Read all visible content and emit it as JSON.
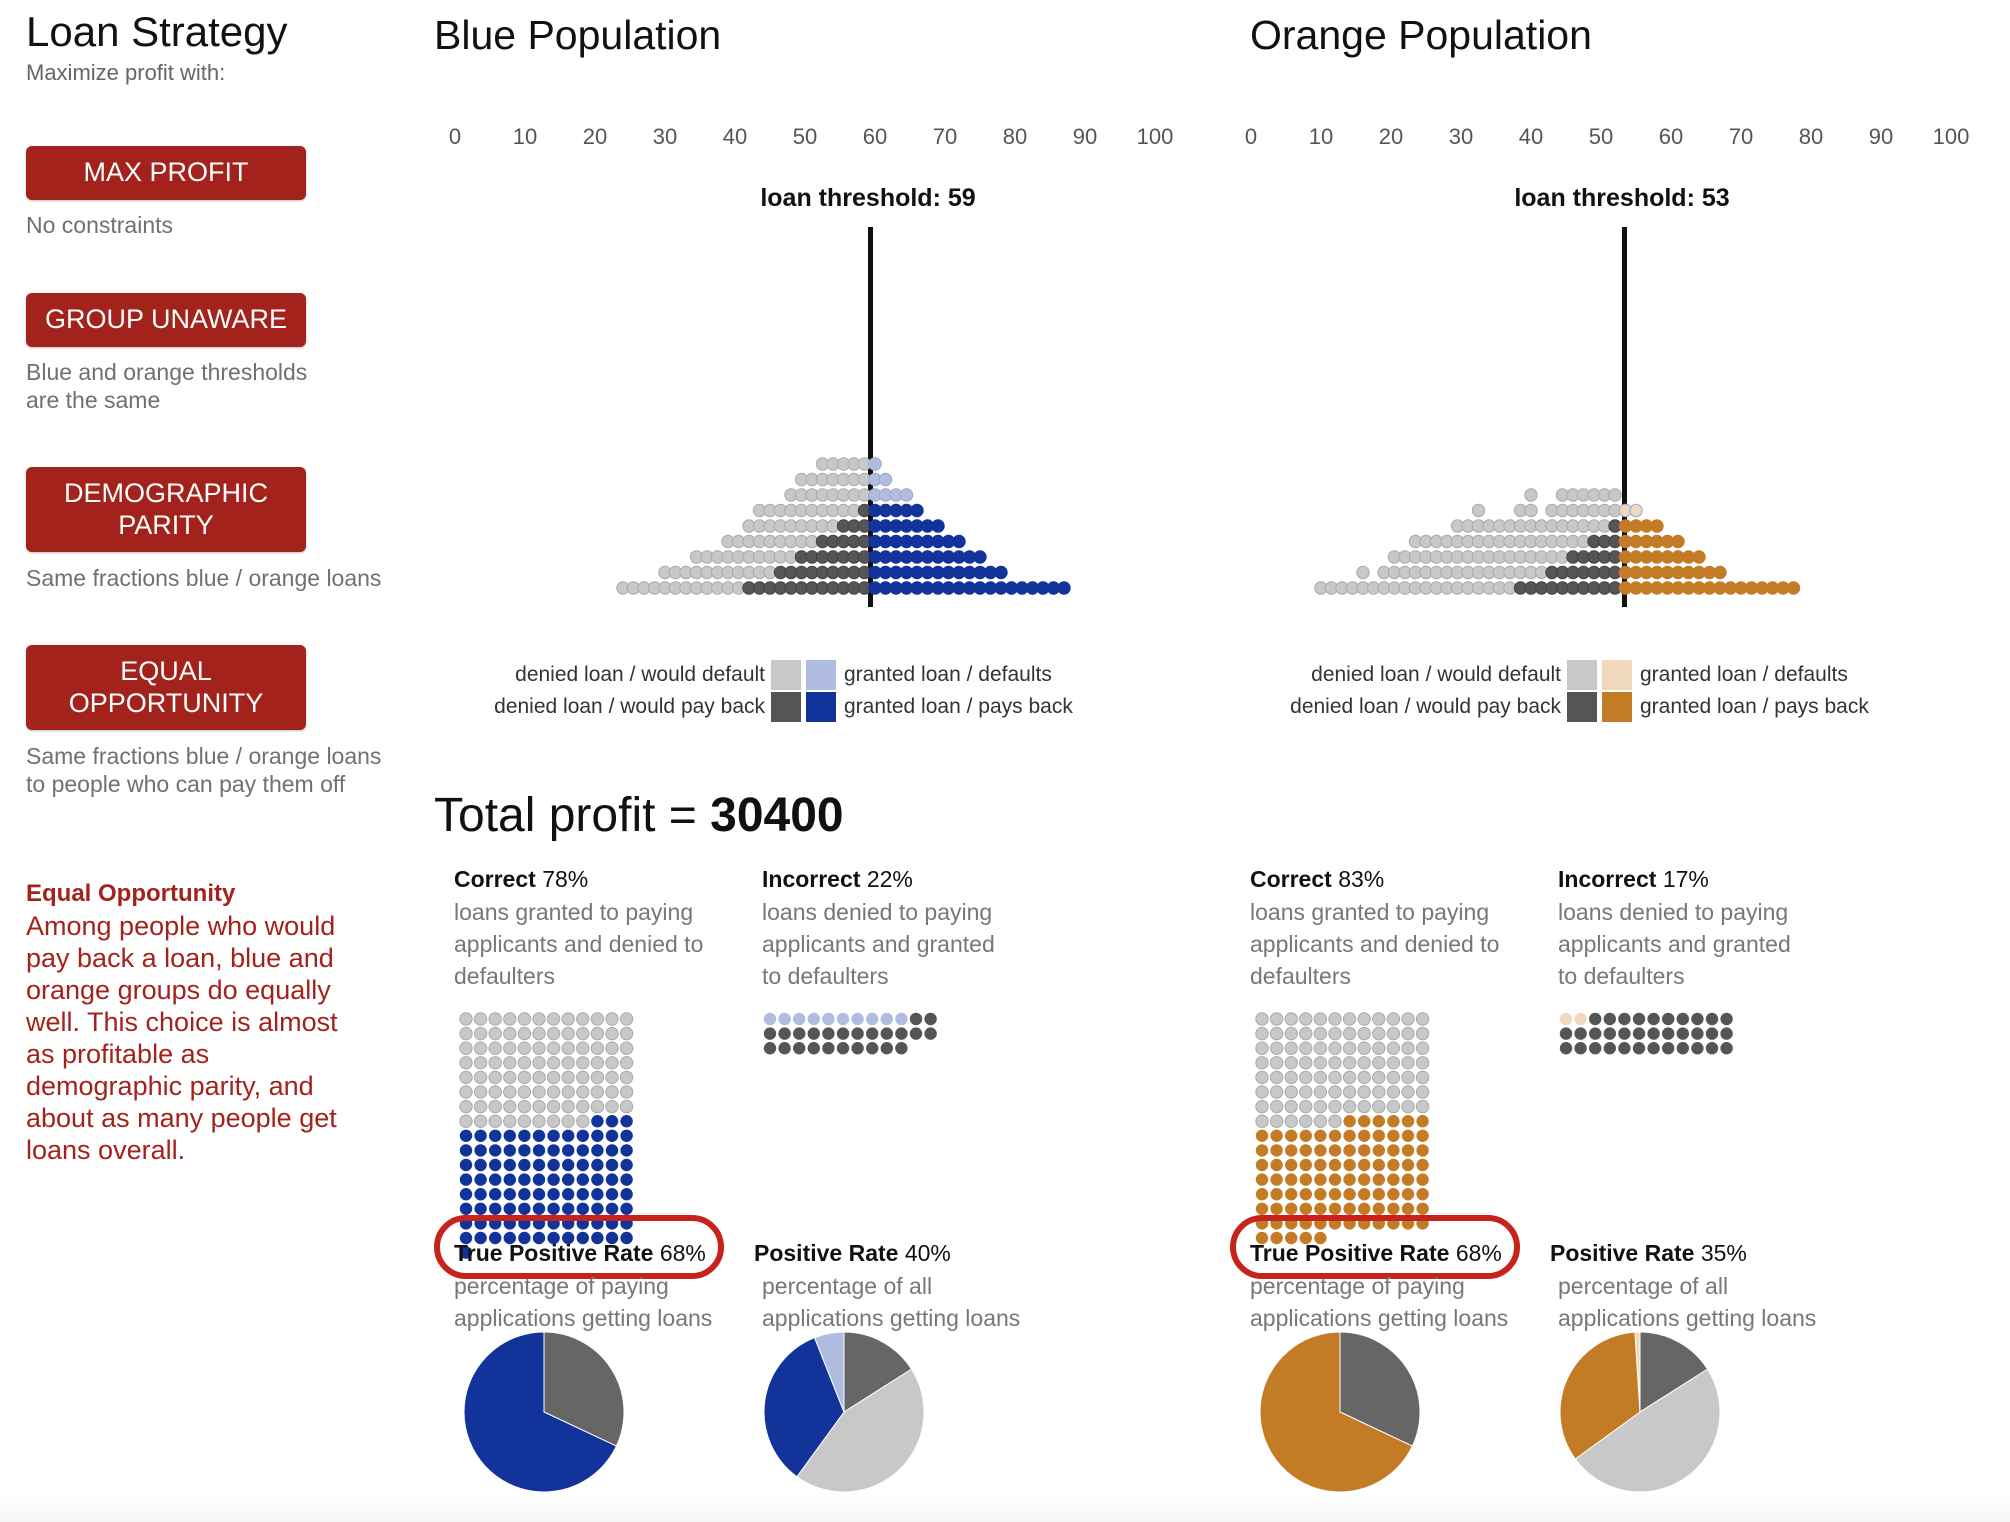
{
  "sidebar": {
    "title": "Loan Strategy",
    "subtitle": "Maximize profit with:",
    "strategies": [
      {
        "label": "MAX PROFIT",
        "desc": "No constraints"
      },
      {
        "label": "GROUP UNAWARE",
        "desc": "Blue and orange thresholds are the same"
      },
      {
        "label": "DEMOGRAPHIC PARITY",
        "desc": "Same fractions blue / orange loans"
      },
      {
        "label": "EQUAL OPPORTUNITY",
        "desc": "Same fractions blue / orange loans to people who can pay them off"
      }
    ],
    "explanation_title": "Equal Opportunity",
    "explanation_body": "Among people who would pay back a loan, blue and orange groups do equally well. This choice is almost as profitable as demographic parity, and about as many people get loans overall."
  },
  "axis_ticks": [
    "0",
    "10",
    "20",
    "30",
    "40",
    "50",
    "60",
    "70",
    "80",
    "90",
    "100"
  ],
  "legend": {
    "denied_default": "denied loan / would default",
    "denied_payback": "denied loan / would pay back",
    "granted_default": "granted loan / defaults",
    "granted_payback": "granted loan / pays back"
  },
  "colors": {
    "denied_default": "#c8c8c8",
    "denied_payback": "#555555",
    "blue_granted_default": "#b1bde0",
    "blue_granted_payback": "#12339a",
    "orange_granted_default": "#f0d8bc",
    "orange_granted_payback": "#c47b26",
    "accent_red": "#a3231c"
  },
  "profit": {
    "label": "Total profit = ",
    "value": "30400"
  },
  "populations": [
    {
      "key": "blue",
      "title": "Blue Population",
      "threshold_label": "loan threshold: 59",
      "threshold": 59,
      "correct": {
        "title": "Correct",
        "pct": "78%",
        "desc": "loans granted to paying applicants and denied to defaulters"
      },
      "incorrect": {
        "title": "Incorrect",
        "pct": "22%",
        "desc": "loans denied to paying applicants and granted to defaulters"
      },
      "tpr": {
        "title": "True Positive Rate",
        "pct": "68%",
        "desc": "percentage of paying applications getting loans",
        "value": 0.68
      },
      "pr": {
        "title": "Positive Rate",
        "pct": "40%",
        "desc": "percentage of all applications getting loans"
      },
      "pie_pr": {
        "granted_payback": 0.34,
        "granted_default": 0.06,
        "denied_payback": 0.16,
        "denied_default": 0.44
      }
    },
    {
      "key": "orange",
      "title": "Orange Population",
      "threshold_label": "loan threshold: 53",
      "threshold": 53,
      "correct": {
        "title": "Correct",
        "pct": "83%",
        "desc": "loans granted to paying applicants and denied to defaulters"
      },
      "incorrect": {
        "title": "Incorrect",
        "pct": "17%",
        "desc": "loans denied to paying applicants and granted to defaulters"
      },
      "tpr": {
        "title": "True Positive Rate",
        "pct": "68%",
        "desc": "percentage of paying applications getting loans",
        "value": 0.68
      },
      "pr": {
        "title": "Positive Rate",
        "pct": "35%",
        "desc": "percentage of all applications getting loans"
      },
      "pie_pr": {
        "granted_payback": 0.34,
        "granted_default": 0.01,
        "denied_payback": 0.16,
        "denied_default": 0.49
      }
    }
  ]
}
